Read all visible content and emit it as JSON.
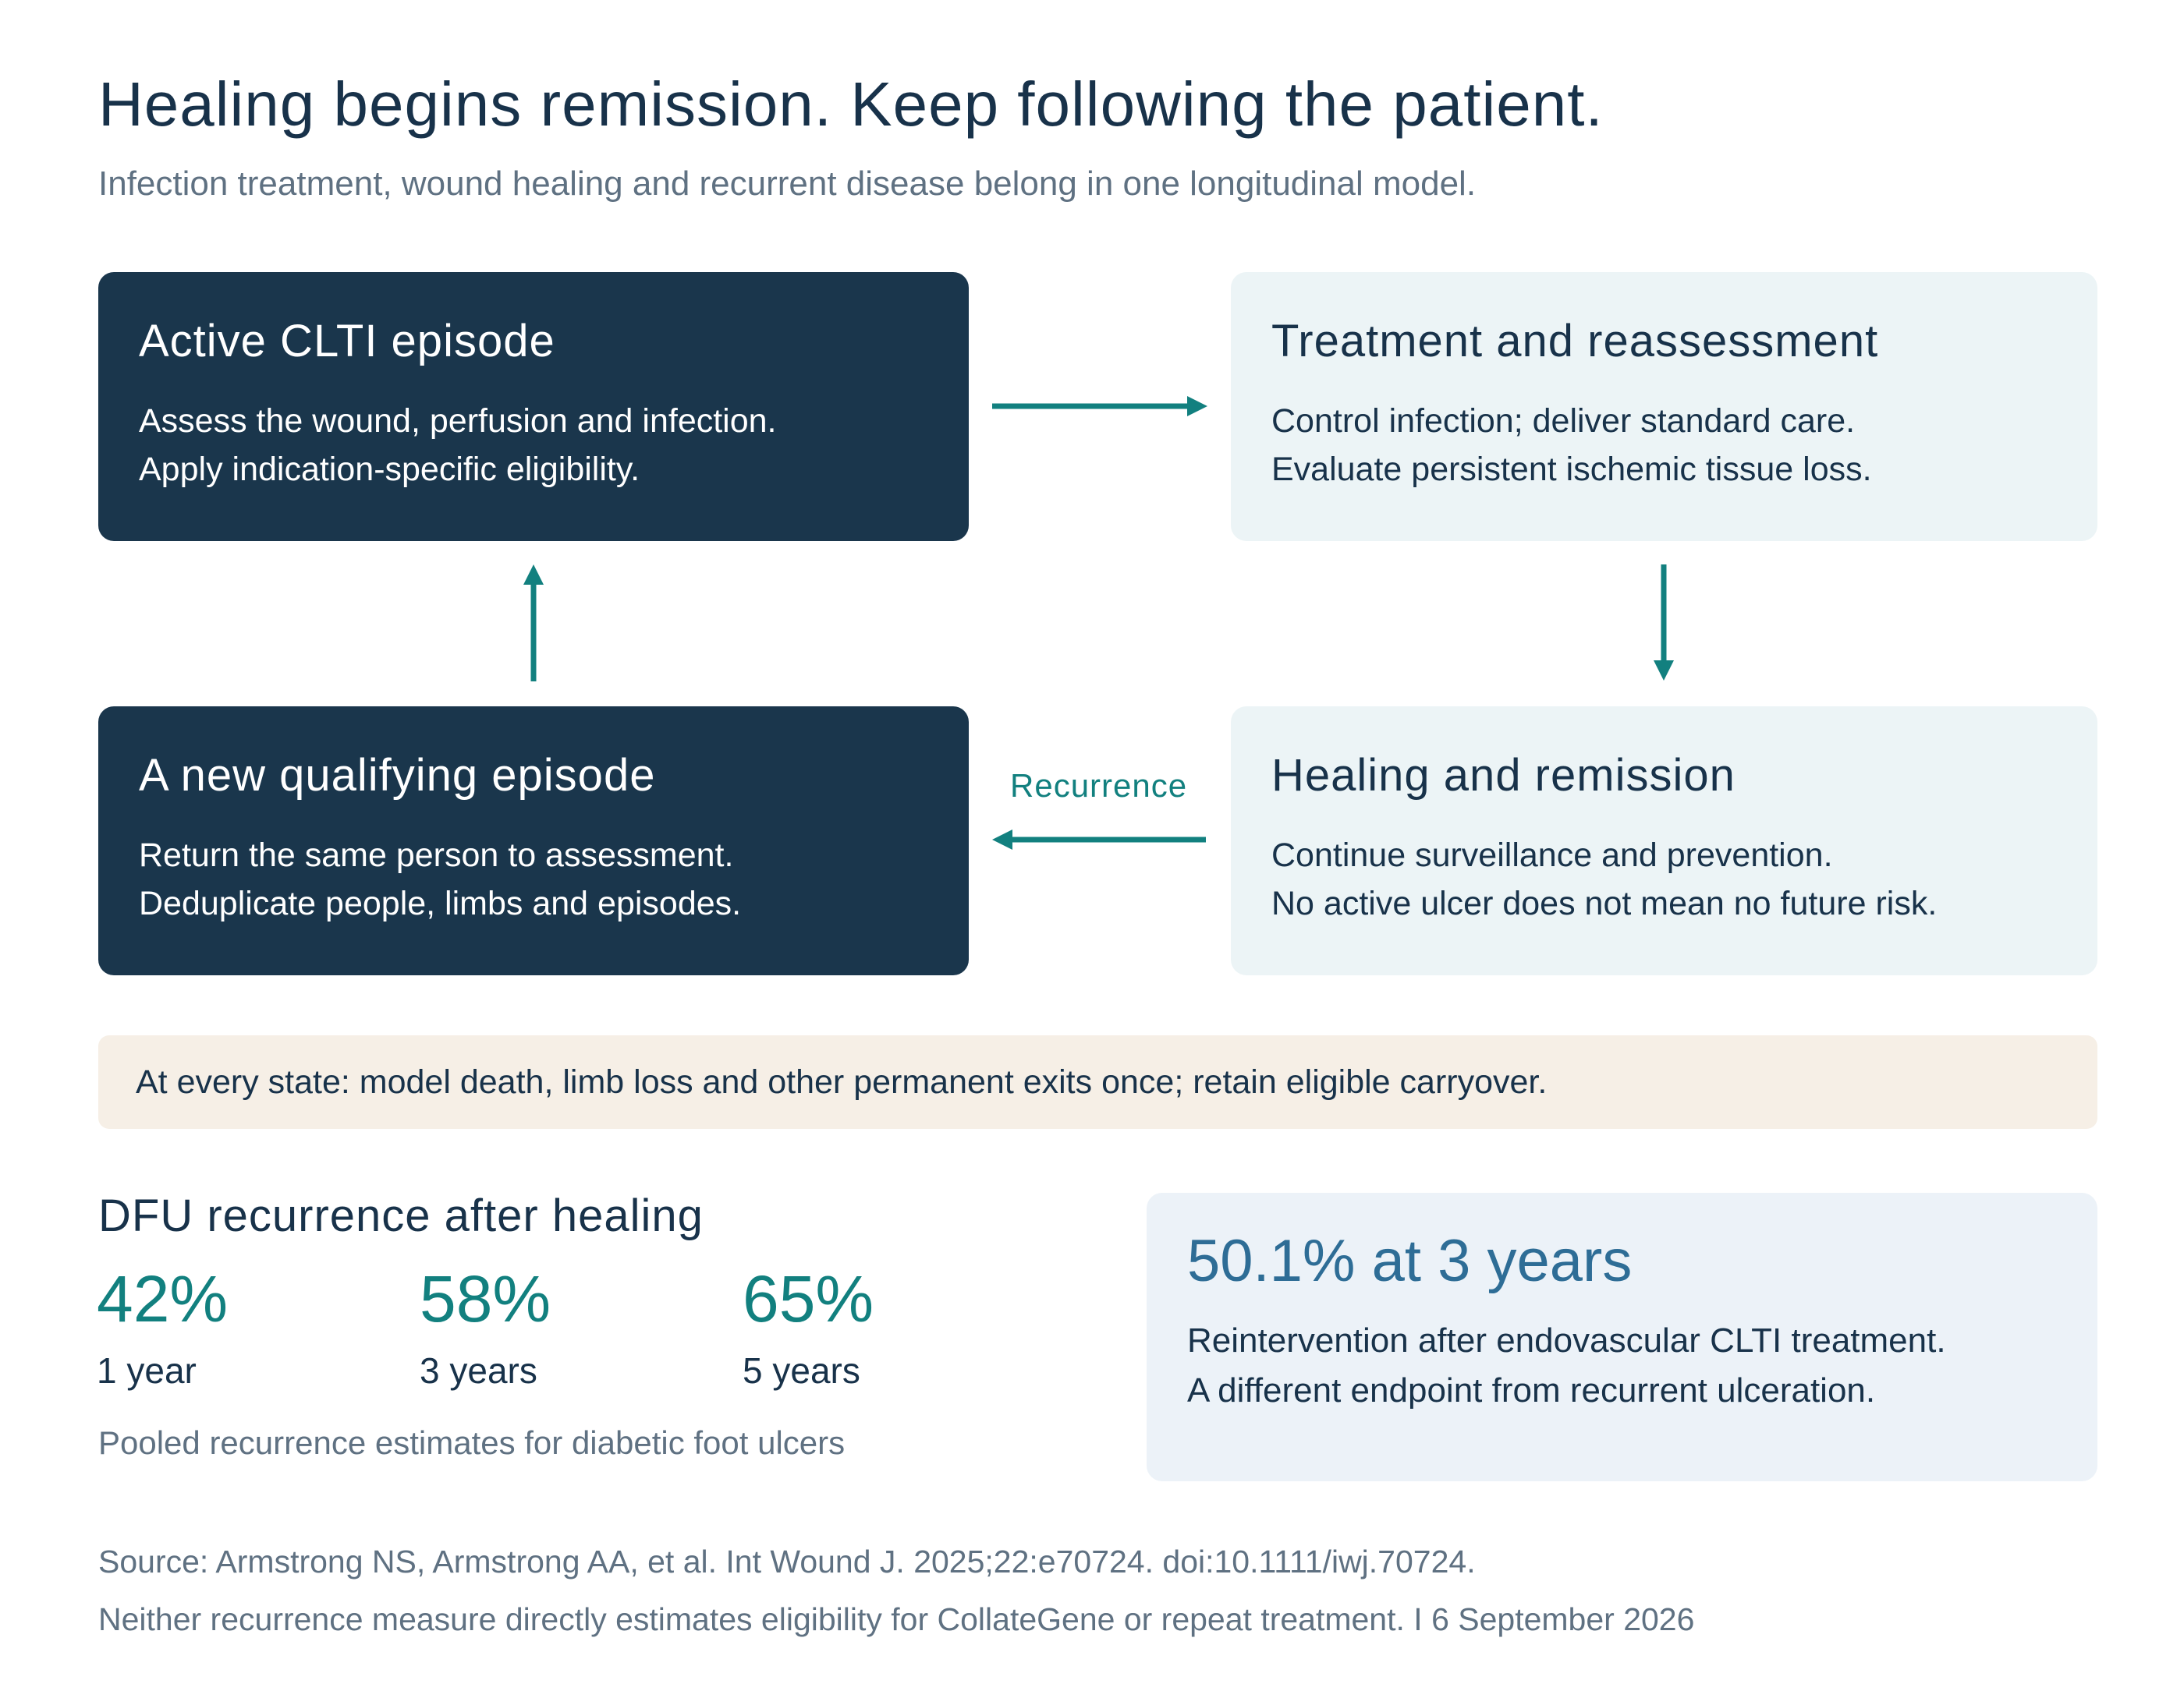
{
  "header": {
    "title": "Healing begins remission. Keep following the patient.",
    "subtitle": "Infection treatment, wound healing and recurrent disease belong in one longitudinal model."
  },
  "states": [
    {
      "title": "Active CLTI episode",
      "lines": [
        "Assess the wound, perfusion and infection.",
        "Apply indication-specific eligibility."
      ]
    },
    {
      "title": "Treatment and reassessment",
      "lines": [
        "Control infection; deliver standard care.",
        "Evaluate persistent ischemic tissue loss."
      ]
    },
    {
      "title": "Healing and remission",
      "lines": [
        "Continue surveillance and prevention.",
        "No active ulcer does not mean no future risk."
      ]
    },
    {
      "title": "A new qualifying episode",
      "lines": [
        "Return the same person to assessment.",
        "Deduplicate people, limbs and episodes."
      ]
    }
  ],
  "arrows": {
    "recurrence_label": "Recurrence"
  },
  "band": {
    "text": "At every state: model death, limb loss and other permanent exits once; retain eligible carryover."
  },
  "recurrence_stats": {
    "heading": "DFU recurrence after healing",
    "items": [
      {
        "value": "42%",
        "label": "1 year"
      },
      {
        "value": "58%",
        "label": "3 years"
      },
      {
        "value": "65%",
        "label": "5 years"
      }
    ],
    "note": "Pooled recurrence estimates for diabetic foot ulcers"
  },
  "callout": {
    "value": "50.1% at 3 years",
    "lines": [
      "Reintervention after endovascular CLTI treatment.",
      "A different endpoint from recurrent ulceration."
    ]
  },
  "source": {
    "line1": "Source: Armstrong NS, Armstrong AA, et al. Int Wound J. 2025;22:e70724. doi:10.1111/iwj.70724.",
    "line2": "Neither recurrence measure directly estimates eligibility for CollateGene or repeat treatment.  I  6 September 2026"
  },
  "colors": {
    "dark_box": "#1a364c",
    "light_box": "#ecf4f6",
    "arrow": "#12807f",
    "band": "#f6efe6",
    "callout": "#ecf2f8",
    "callout_value": "#2e6d96"
  }
}
